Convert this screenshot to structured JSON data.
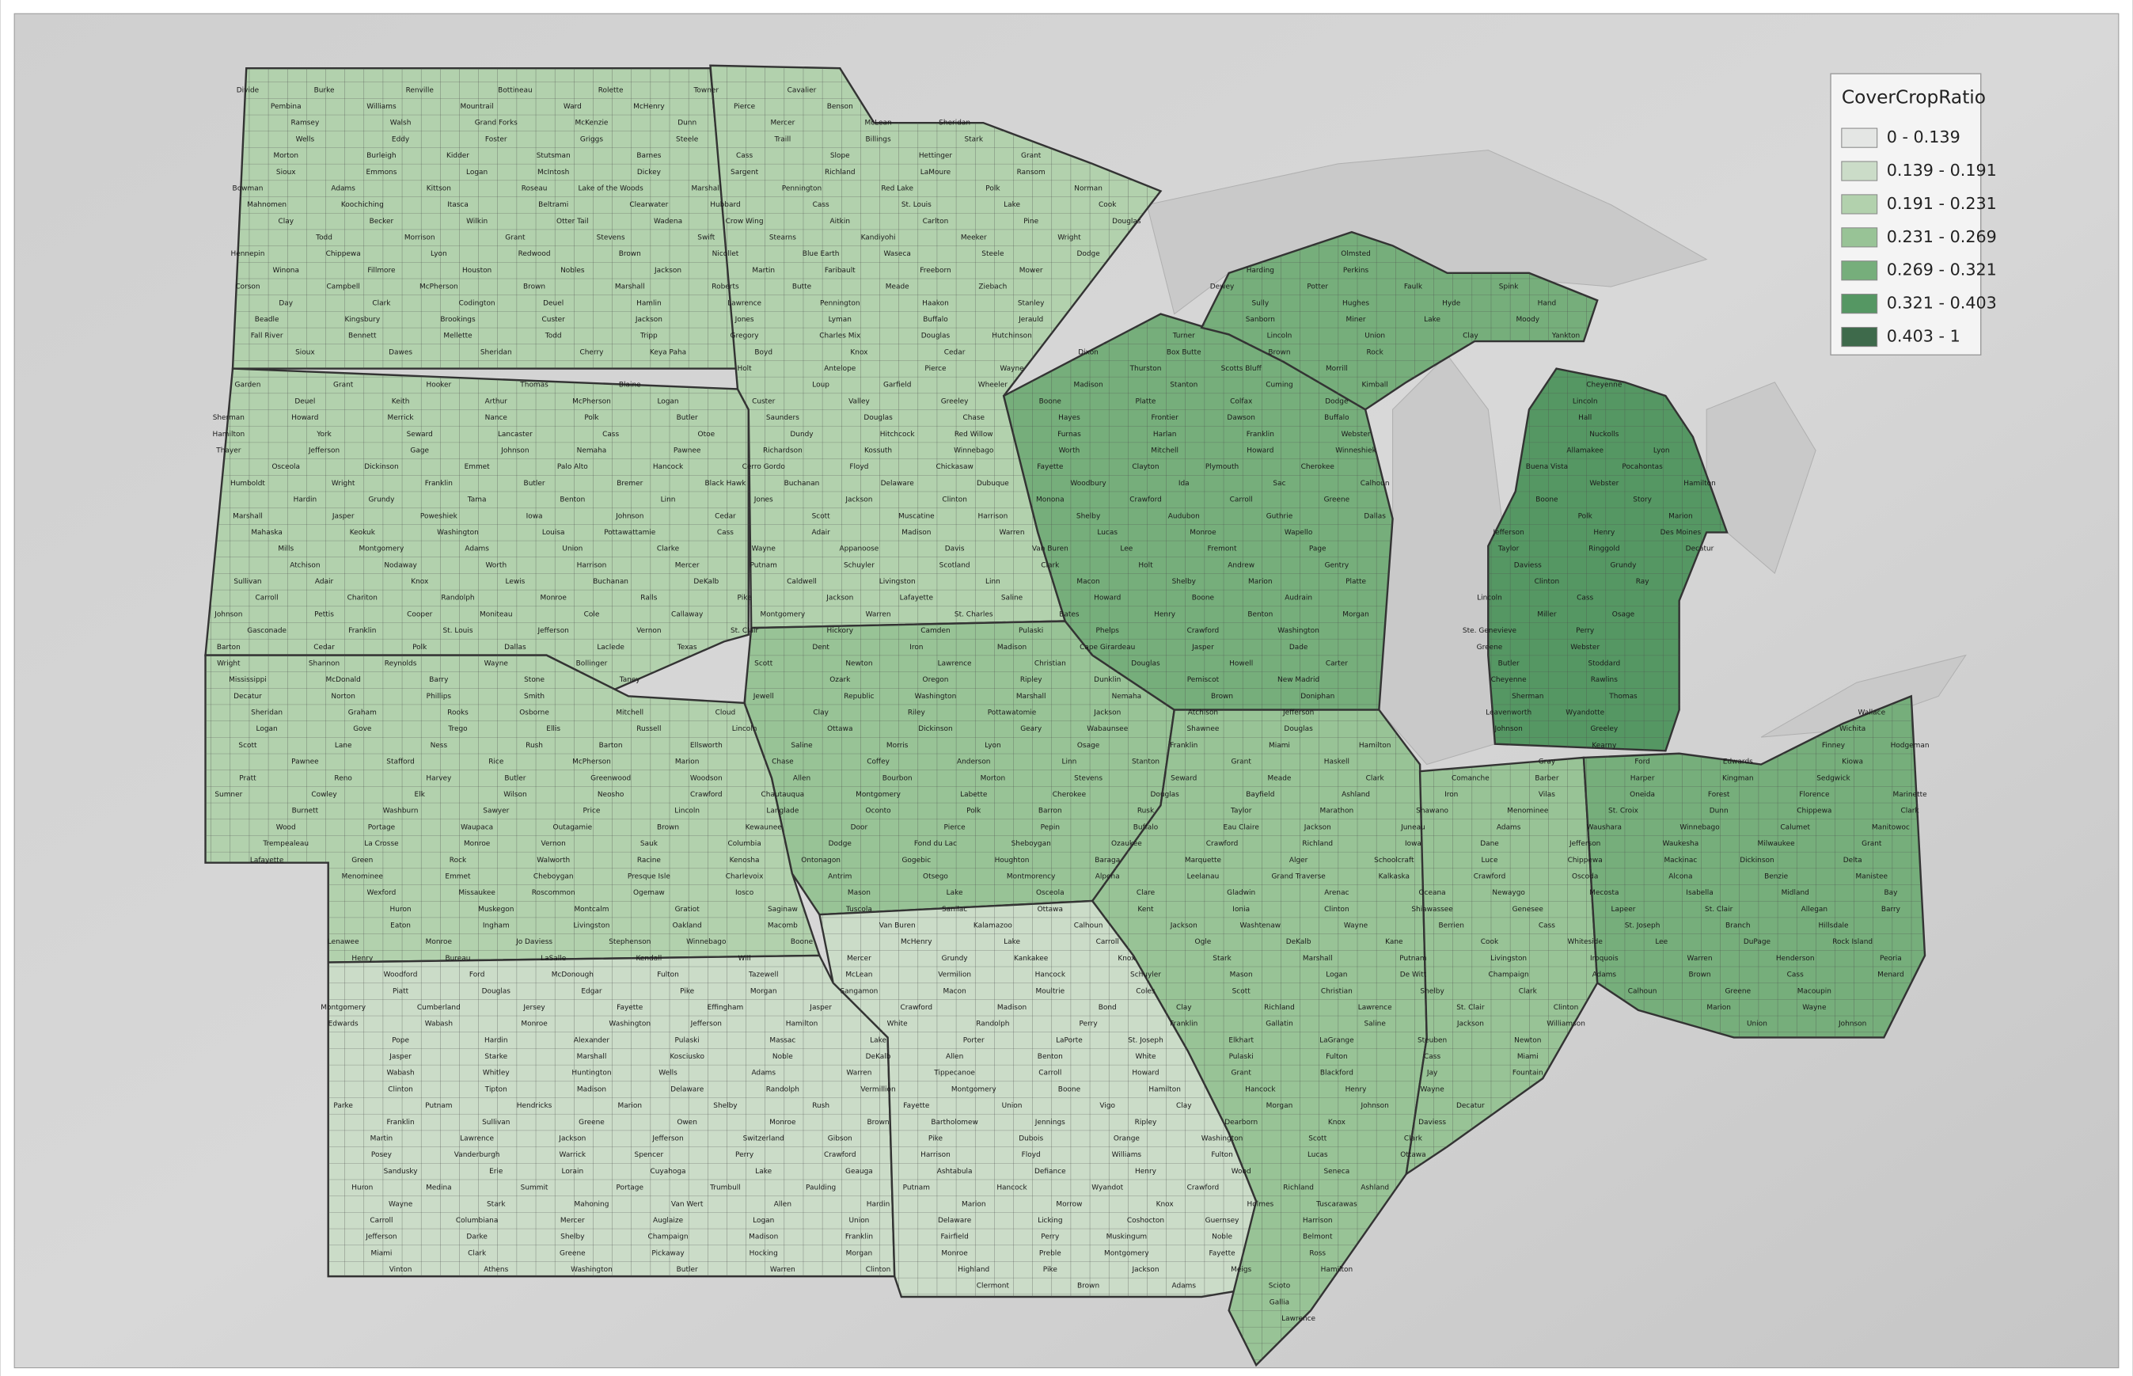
{
  "legend": {
    "title": "CoverCropRatio",
    "classes": [
      {
        "label": "0 - 0.139",
        "color": "#e4e6e4"
      },
      {
        "label": "0.139 - 0.191",
        "color": "#cbdcc8"
      },
      {
        "label": "0.191 - 0.231",
        "color": "#b2d1ad"
      },
      {
        "label": "0.231 - 0.269",
        "color": "#98c396"
      },
      {
        "label": "0.269 - 0.321",
        "color": "#76ae7b"
      },
      {
        "label": "0.321 - 0.403",
        "color": "#559763"
      },
      {
        "label": "0.403 - 1",
        "color": "#3e6a4b"
      }
    ]
  },
  "counties": [
    "Divide",
    "Burke",
    "Renville",
    "Bottineau",
    "Rolette",
    "Towner",
    "Cavalier",
    "Pembina",
    "Williams",
    "Mountrail",
    "Ward",
    "McHenry",
    "Pierce",
    "Benson",
    "Ramsey",
    "Walsh",
    "Grand Forks",
    "McKenzie",
    "Dunn",
    "Mercer",
    "McLean",
    "Sheridan",
    "Wells",
    "Eddy",
    "Foster",
    "Griggs",
    "Steele",
    "Traill",
    "Billings",
    "Stark",
    "Morton",
    "Burleigh",
    "Kidder",
    "Stutsman",
    "Barnes",
    "Cass",
    "Slope",
    "Hettinger",
    "Grant",
    "Sioux",
    "Emmons",
    "Logan",
    "McIntosh",
    "Dickey",
    "Sargent",
    "Richland",
    "LaMoure",
    "Ransom",
    "Bowman",
    "Adams",
    "Kittson",
    "Roseau",
    "Lake of the Woods",
    "Marshall",
    "Pennington",
    "Red Lake",
    "Polk",
    "Norman",
    "Mahnomen",
    "Koochiching",
    "Itasca",
    "Beltrami",
    "Clearwater",
    "Hubbard",
    "Cass",
    "St. Louis",
    "Lake",
    "Cook",
    "Clay",
    "Becker",
    "Wilkin",
    "Otter Tail",
    "Wadena",
    "Crow Wing",
    "Aitkin",
    "Carlton",
    "Pine",
    "Douglas",
    "Todd",
    "Morrison",
    "Grant",
    "Stevens",
    "Swift",
    "Stearns",
    "Kandiyohi",
    "Meeker",
    "Wright",
    "Hennepin",
    "Chippewa",
    "Lyon",
    "Redwood",
    "Brown",
    "Nicollet",
    "Blue Earth",
    "Waseca",
    "Steele",
    "Dodge",
    "Olmsted",
    "Winona",
    "Fillmore",
    "Houston",
    "Nobles",
    "Jackson",
    "Martin",
    "Faribault",
    "Freeborn",
    "Mower",
    "Harding",
    "Perkins",
    "Corson",
    "Campbell",
    "McPherson",
    "Brown",
    "Marshall",
    "Roberts",
    "Butte",
    "Meade",
    "Ziebach",
    "Dewey",
    "Potter",
    "Faulk",
    "Spink",
    "Day",
    "Clark",
    "Codington",
    "Deuel",
    "Hamlin",
    "Lawrence",
    "Pennington",
    "Haakon",
    "Stanley",
    "Sully",
    "Hughes",
    "Hyde",
    "Hand",
    "Beadle",
    "Kingsbury",
    "Brookings",
    "Custer",
    "Jackson",
    "Jones",
    "Lyman",
    "Buffalo",
    "Jerauld",
    "Sanborn",
    "Miner",
    "Lake",
    "Moody",
    "Fall River",
    "Bennett",
    "Mellette",
    "Todd",
    "Tripp",
    "Gregory",
    "Charles Mix",
    "Douglas",
    "Hutchinson",
    "Turner",
    "Lincoln",
    "Union",
    "Clay",
    "Yankton",
    "Sioux",
    "Dawes",
    "Sheridan",
    "Cherry",
    "Keya Paha",
    "Boyd",
    "Knox",
    "Cedar",
    "Dixon",
    "Box Butte",
    "Brown",
    "Rock",
    "Holt",
    "Antelope",
    "Pierce",
    "Wayne",
    "Thurston",
    "Scotts Bluff",
    "Morrill",
    "Garden",
    "Grant",
    "Hooker",
    "Thomas",
    "Blaine",
    "Loup",
    "Garfield",
    "Wheeler",
    "Madison",
    "Stanton",
    "Cuming",
    "Kimball",
    "Cheyenne",
    "Deuel",
    "Keith",
    "Arthur",
    "McPherson",
    "Logan",
    "Custer",
    "Valley",
    "Greeley",
    "Boone",
    "Platte",
    "Colfax",
    "Dodge",
    "Lincoln",
    "Sherman",
    "Howard",
    "Merrick",
    "Nance",
    "Polk",
    "Butler",
    "Saunders",
    "Douglas",
    "Chase",
    "Hayes",
    "Frontier",
    "Dawson",
    "Buffalo",
    "Hall",
    "Hamilton",
    "York",
    "Seward",
    "Lancaster",
    "Cass",
    "Otoe",
    "Dundy",
    "Hitchcock",
    "Red Willow",
    "Furnas",
    "Harlan",
    "Franklin",
    "Webster",
    "Nuckolls",
    "Thayer",
    "Jefferson",
    "Gage",
    "Johnson",
    "Nemaha",
    "Pawnee",
    "Richardson",
    "Kossuth",
    "Winnebago",
    "Worth",
    "Mitchell",
    "Howard",
    "Winneshiek",
    "Allamakee",
    "Lyon",
    "Osceola",
    "Dickinson",
    "Emmet",
    "Palo Alto",
    "Hancock",
    "Cerro Gordo",
    "Floyd",
    "Chickasaw",
    "Fayette",
    "Clayton",
    "Plymouth",
    "Cherokee",
    "Buena Vista",
    "Pocahontas",
    "Humboldt",
    "Wright",
    "Franklin",
    "Butler",
    "Bremer",
    "Black Hawk",
    "Buchanan",
    "Delaware",
    "Dubuque",
    "Woodbury",
    "Ida",
    "Sac",
    "Calhoun",
    "Webster",
    "Hamilton",
    "Hardin",
    "Grundy",
    "Tama",
    "Benton",
    "Linn",
    "Jones",
    "Jackson",
    "Clinton",
    "Monona",
    "Crawford",
    "Carroll",
    "Greene",
    "Boone",
    "Story",
    "Marshall",
    "Jasper",
    "Poweshiek",
    "Iowa",
    "Johnson",
    "Cedar",
    "Scott",
    "Muscatine",
    "Harrison",
    "Shelby",
    "Audubon",
    "Guthrie",
    "Dallas",
    "Polk",
    "Marion",
    "Mahaska",
    "Keokuk",
    "Washington",
    "Louisa",
    "Pottawattamie",
    "Cass",
    "Adair",
    "Madison",
    "Warren",
    "Lucas",
    "Monroe",
    "Wapello",
    "Jefferson",
    "Henry",
    "Des Moines",
    "Mills",
    "Montgomery",
    "Adams",
    "Union",
    "Clarke",
    "Wayne",
    "Appanoose",
    "Davis",
    "Van Buren",
    "Lee",
    "Fremont",
    "Page",
    "Taylor",
    "Ringgold",
    "Decatur",
    "Atchison",
    "Nodaway",
    "Worth",
    "Harrison",
    "Mercer",
    "Putnam",
    "Schuyler",
    "Scotland",
    "Clark",
    "Holt",
    "Andrew",
    "Gentry",
    "Daviess",
    "Grundy",
    "Sullivan",
    "Adair",
    "Knox",
    "Lewis",
    "Buchanan",
    "DeKalb",
    "Caldwell",
    "Livingston",
    "Linn",
    "Macon",
    "Shelby",
    "Marion",
    "Platte",
    "Clinton",
    "Ray",
    "Carroll",
    "Chariton",
    "Randolph",
    "Monroe",
    "Ralls",
    "Pike",
    "Jackson",
    "Lafayette",
    "Saline",
    "Howard",
    "Boone",
    "Audrain",
    "Lincoln",
    "Cass",
    "Johnson",
    "Pettis",
    "Cooper",
    "Moniteau",
    "Cole",
    "Callaway",
    "Montgomery",
    "Warren",
    "St. Charles",
    "Bates",
    "Henry",
    "Benton",
    "Morgan",
    "Miller",
    "Osage",
    "Gasconade",
    "Franklin",
    "St. Louis",
    "Jefferson",
    "Vernon",
    "St. Clair",
    "Hickory",
    "Camden",
    "Pulaski",
    "Phelps",
    "Crawford",
    "Washington",
    "Ste. Genevieve",
    "Perry",
    "Barton",
    "Cedar",
    "Polk",
    "Dallas",
    "Laclede",
    "Texas",
    "Dent",
    "Iron",
    "Madison",
    "Cape Girardeau",
    "Jasper",
    "Dade",
    "Greene",
    "Webster",
    "Wright",
    "Shannon",
    "Reynolds",
    "Wayne",
    "Bollinger",
    "Scott",
    "Newton",
    "Lawrence",
    "Christian",
    "Douglas",
    "Howell",
    "Carter",
    "Butler",
    "Stoddard",
    "Mississippi",
    "McDonald",
    "Barry",
    "Stone",
    "Taney",
    "Ozark",
    "Oregon",
    "Ripley",
    "Dunklin",
    "Pemiscot",
    "New Madrid",
    "Cheyenne",
    "Rawlins",
    "Decatur",
    "Norton",
    "Phillips",
    "Smith",
    "Jewell",
    "Republic",
    "Washington",
    "Marshall",
    "Nemaha",
    "Brown",
    "Doniphan",
    "Sherman",
    "Thomas",
    "Sheridan",
    "Graham",
    "Rooks",
    "Osborne",
    "Mitchell",
    "Cloud",
    "Clay",
    "Riley",
    "Pottawatomie",
    "Jackson",
    "Atchison",
    "Jefferson",
    "Leavenworth",
    "Wyandotte",
    "Wallace",
    "Logan",
    "Gove",
    "Trego",
    "Ellis",
    "Russell",
    "Lincoln",
    "Ottawa",
    "Dickinson",
    "Geary",
    "Wabaunsee",
    "Shawnee",
    "Douglas",
    "Johnson",
    "Greeley",
    "Wichita",
    "Scott",
    "Lane",
    "Ness",
    "Rush",
    "Barton",
    "Ellsworth",
    "Saline",
    "Morris",
    "Lyon",
    "Osage",
    "Franklin",
    "Miami",
    "Hamilton",
    "Kearny",
    "Finney",
    "Hodgeman",
    "Pawnee",
    "Stafford",
    "Rice",
    "McPherson",
    "Marion",
    "Chase",
    "Coffey",
    "Anderson",
    "Linn",
    "Stanton",
    "Grant",
    "Haskell",
    "Gray",
    "Ford",
    "Edwards",
    "Kiowa",
    "Pratt",
    "Reno",
    "Harvey",
    "Butler",
    "Greenwood",
    "Woodson",
    "Allen",
    "Bourbon",
    "Morton",
    "Stevens",
    "Seward",
    "Meade",
    "Clark",
    "Comanche",
    "Barber",
    "Harper",
    "Kingman",
    "Sedgwick",
    "Sumner",
    "Cowley",
    "Elk",
    "Wilson",
    "Neosho",
    "Crawford",
    "Chautauqua",
    "Montgomery",
    "Labette",
    "Cherokee",
    "Douglas",
    "Bayfield",
    "Ashland",
    "Iron",
    "Vilas",
    "Oneida",
    "Forest",
    "Florence",
    "Marinette",
    "Burnett",
    "Washburn",
    "Sawyer",
    "Price",
    "Lincoln",
    "Langlade",
    "Oconto",
    "Polk",
    "Barron",
    "Rusk",
    "Taylor",
    "Marathon",
    "Shawano",
    "Menominee",
    "St. Croix",
    "Dunn",
    "Chippewa",
    "Clark",
    "Wood",
    "Portage",
    "Waupaca",
    "Outagamie",
    "Brown",
    "Kewaunee",
    "Door",
    "Pierce",
    "Pepin",
    "Buffalo",
    "Eau Claire",
    "Jackson",
    "Juneau",
    "Adams",
    "Waushara",
    "Winnebago",
    "Calumet",
    "Manitowoc",
    "Trempealeau",
    "La Crosse",
    "Monroe",
    "Vernon",
    "Sauk",
    "Columbia",
    "Dodge",
    "Fond du Lac",
    "Sheboygan",
    "Ozaukee",
    "Crawford",
    "Richland",
    "Iowa",
    "Dane",
    "Jefferson",
    "Waukesha",
    "Milwaukee",
    "Grant",
    "Lafayette",
    "Green",
    "Rock",
    "Walworth",
    "Racine",
    "Kenosha",
    "Ontonagon",
    "Gogebic",
    "Houghton",
    "Baraga",
    "Marquette",
    "Alger",
    "Schoolcraft",
    "Luce",
    "Chippewa",
    "Mackinac",
    "Dickinson",
    "Delta",
    "Menominee",
    "Emmet",
    "Cheboygan",
    "Presque Isle",
    "Charlevoix",
    "Antrim",
    "Otsego",
    "Montmorency",
    "Alpena",
    "Leelanau",
    "Grand Traverse",
    "Kalkaska",
    "Crawford",
    "Oscoda",
    "Alcona",
    "Benzie",
    "Manistee",
    "Wexford",
    "Missaukee",
    "Roscommon",
    "Ogemaw",
    "Iosco",
    "Mason",
    "Lake",
    "Osceola",
    "Clare",
    "Gladwin",
    "Arenac",
    "Oceana",
    "Newaygo",
    "Mecosta",
    "Isabella",
    "Midland",
    "Bay",
    "Huron",
    "Muskegon",
    "Montcalm",
    "Gratiot",
    "Saginaw",
    "Tuscola",
    "Sanilac",
    "Ottawa",
    "Kent",
    "Ionia",
    "Clinton",
    "Shiawassee",
    "Genesee",
    "Lapeer",
    "St. Clair",
    "Allegan",
    "Barry",
    "Eaton",
    "Ingham",
    "Livingston",
    "Oakland",
    "Macomb",
    "Van Buren",
    "Kalamazoo",
    "Calhoun",
    "Jackson",
    "Washtenaw",
    "Wayne",
    "Berrien",
    "Cass",
    "St. Joseph",
    "Branch",
    "Hillsdale",
    "Lenawee",
    "Monroe",
    "Jo Daviess",
    "Stephenson",
    "Winnebago",
    "Boone",
    "McHenry",
    "Lake",
    "Carroll",
    "Ogle",
    "DeKalb",
    "Kane",
    "Cook",
    "Whiteside",
    "Lee",
    "DuPage",
    "Rock Island",
    "Henry",
    "Bureau",
    "LaSalle",
    "Kendall",
    "Will",
    "Mercer",
    "Grundy",
    "Kankakee",
    "Knox",
    "Stark",
    "Marshall",
    "Putnam",
    "Livingston",
    "Iroquois",
    "Warren",
    "Henderson",
    "Peoria",
    "Woodford",
    "Ford",
    "McDonough",
    "Fulton",
    "Tazewell",
    "McLean",
    "Vermilion",
    "Hancock",
    "Schuyler",
    "Mason",
    "Logan",
    "De Witt",
    "Champaign",
    "Adams",
    "Brown",
    "Cass",
    "Menard",
    "Piatt",
    "Douglas",
    "Edgar",
    "Pike",
    "Morgan",
    "Sangamon",
    "Macon",
    "Moultrie",
    "Coles",
    "Scott",
    "Christian",
    "Shelby",
    "Clark",
    "Calhoun",
    "Greene",
    "Macoupin",
    "Montgomery",
    "Cumberland",
    "Jersey",
    "Fayette",
    "Effingham",
    "Jasper",
    "Crawford",
    "Madison",
    "Bond",
    "Clay",
    "Richland",
    "Lawrence",
    "St. Clair",
    "Clinton",
    "Marion",
    "Wayne",
    "Edwards",
    "Wabash",
    "Monroe",
    "Washington",
    "Jefferson",
    "Hamilton",
    "White",
    "Randolph",
    "Perry",
    "Franklin",
    "Gallatin",
    "Saline",
    "Jackson",
    "Williamson",
    "Union",
    "Johnson",
    "Pope",
    "Hardin",
    "Alexander",
    "Pulaski",
    "Massac",
    "Lake",
    "Porter",
    "LaPorte",
    "St. Joseph",
    "Elkhart",
    "LaGrange",
    "Steuben",
    "Newton",
    "Jasper",
    "Starke",
    "Marshall",
    "Kosciusko",
    "Noble",
    "DeKalb",
    "Allen",
    "Benton",
    "White",
    "Pulaski",
    "Fulton",
    "Cass",
    "Miami",
    "Wabash",
    "Whitley",
    "Huntington",
    "Wells",
    "Adams",
    "Warren",
    "Tippecanoe",
    "Carroll",
    "Howard",
    "Grant",
    "Blackford",
    "Jay",
    "Fountain",
    "Clinton",
    "Tipton",
    "Madison",
    "Delaware",
    "Randolph",
    "Vermillion",
    "Montgomery",
    "Boone",
    "Hamilton",
    "Hancock",
    "Henry",
    "Wayne",
    "Parke",
    "Putnam",
    "Hendricks",
    "Marion",
    "Shelby",
    "Rush",
    "Fayette",
    "Union",
    "Vigo",
    "Clay",
    "Morgan",
    "Johnson",
    "Decatur",
    "Franklin",
    "Sullivan",
    "Greene",
    "Owen",
    "Monroe",
    "Brown",
    "Bartholomew",
    "Jennings",
    "Ripley",
    "Dearborn",
    "Knox",
    "Daviess",
    "Martin",
    "Lawrence",
    "Jackson",
    "Jefferson",
    "Switzerland",
    "Gibson",
    "Pike",
    "Dubois",
    "Orange",
    "Washington",
    "Scott",
    "Clark",
    "Posey",
    "Vanderburgh",
    "Warrick",
    "Spencer",
    "Perry",
    "Crawford",
    "Harrison",
    "Floyd",
    "Williams",
    "Fulton",
    "Lucas",
    "Ottawa",
    "Sandusky",
    "Erie",
    "Lorain",
    "Cuyahoga",
    "Lake",
    "Geauga",
    "Ashtabula",
    "Defiance",
    "Henry",
    "Wood",
    "Seneca",
    "Huron",
    "Medina",
    "Summit",
    "Portage",
    "Trumbull",
    "Paulding",
    "Putnam",
    "Hancock",
    "Wyandot",
    "Crawford",
    "Richland",
    "Ashland",
    "Wayne",
    "Stark",
    "Mahoning",
    "Van Wert",
    "Allen",
    "Hardin",
    "Marion",
    "Morrow",
    "Knox",
    "Holmes",
    "Tuscarawas",
    "Carroll",
    "Columbiana",
    "Mercer",
    "Auglaize",
    "Logan",
    "Union",
    "Delaware",
    "Licking",
    "Coshocton",
    "Guernsey",
    "Harrison",
    "Jefferson",
    "Darke",
    "Shelby",
    "Champaign",
    "Madison",
    "Franklin",
    "Fairfield",
    "Perry",
    "Muskingum",
    "Noble",
    "Belmont",
    "Miami",
    "Clark",
    "Greene",
    "Pickaway",
    "Hocking",
    "Morgan",
    "Monroe",
    "Preble",
    "Montgomery",
    "Fayette",
    "Ross",
    "Vinton",
    "Athens",
    "Washington",
    "Butler",
    "Warren",
    "Clinton",
    "Highland",
    "Pike",
    "Jackson",
    "Meigs",
    "Hamilton",
    "Clermont",
    "Brown",
    "Adams",
    "Scioto",
    "Gallia",
    "Lawrence"
  ]
}
